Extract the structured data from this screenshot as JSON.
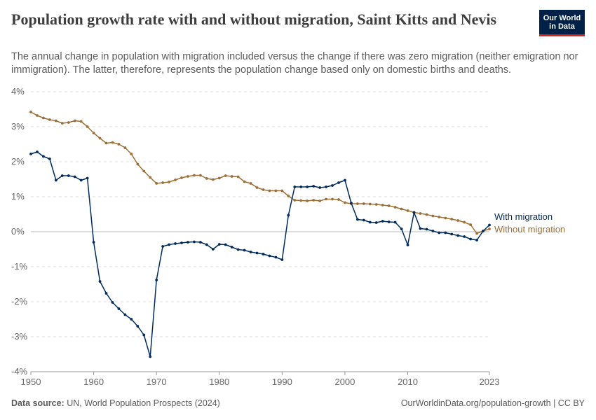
{
  "header": {
    "title": "Population growth rate with and without migration, Saint Kitts and Nevis",
    "subtitle": "The annual change in population with migration included versus the change if there was zero migration (neither emigration nor immigration). The latter, therefore, represents the population change based only on domestic births and deaths.",
    "logo_line1": "Our World",
    "logo_line2": "in Data"
  },
  "footer": {
    "source_label": "Data source:",
    "source_text": "UN, World Population Prospects (2024)",
    "url_text": "OurWorldinData.org/population-growth | CC BY"
  },
  "colors": {
    "with_migration": "#002b5c",
    "without_migration": "#9e6f35",
    "grid": "#dddddd",
    "zero_line": "#bbbbbb"
  },
  "chart_data": {
    "type": "line",
    "title": "Population growth rate with and without migration, Saint Kitts and Nevis",
    "xlabel": "",
    "ylabel": "",
    "xlim": [
      1950,
      2023
    ],
    "ylim": [
      -4,
      4
    ],
    "grid": true,
    "x_ticks": [
      1950,
      1960,
      1970,
      1980,
      1990,
      2000,
      2010,
      2023
    ],
    "x_tick_labels": [
      "1950",
      "1960",
      "1970",
      "1980",
      "1990",
      "2000",
      "2010",
      "2023"
    ],
    "y_ticks": [
      -4,
      -3,
      -2,
      -1,
      0,
      1,
      2,
      3,
      4
    ],
    "y_tick_labels": [
      "-4%",
      "-3%",
      "-2%",
      "-1%",
      "0%",
      "1%",
      "2%",
      "3%",
      "4%"
    ],
    "legend_placement": "inline-right",
    "x": [
      1950,
      1951,
      1952,
      1953,
      1954,
      1955,
      1956,
      1957,
      1958,
      1959,
      1960,
      1961,
      1962,
      1963,
      1964,
      1965,
      1966,
      1967,
      1968,
      1969,
      1970,
      1971,
      1972,
      1973,
      1974,
      1975,
      1976,
      1977,
      1978,
      1979,
      1980,
      1981,
      1982,
      1983,
      1984,
      1985,
      1986,
      1987,
      1988,
      1989,
      1990,
      1991,
      1992,
      1993,
      1994,
      1995,
      1996,
      1997,
      1998,
      1999,
      2000,
      2001,
      2002,
      2003,
      2004,
      2005,
      2006,
      2007,
      2008,
      2009,
      2010,
      2011,
      2012,
      2013,
      2014,
      2015,
      2016,
      2017,
      2018,
      2019,
      2020,
      2021,
      2022,
      2023
    ],
    "series": [
      {
        "name": "With migration",
        "values": [
          2.22,
          2.28,
          2.15,
          2.08,
          1.47,
          1.6,
          1.6,
          1.57,
          1.47,
          1.53,
          -0.3,
          -1.42,
          -1.76,
          -2.02,
          -2.2,
          -2.37,
          -2.5,
          -2.7,
          -2.95,
          -3.57,
          -1.38,
          -0.42,
          -0.37,
          -0.34,
          -0.32,
          -0.3,
          -0.29,
          -0.3,
          -0.37,
          -0.5,
          -0.36,
          -0.37,
          -0.44,
          -0.51,
          -0.53,
          -0.58,
          -0.61,
          -0.64,
          -0.69,
          -0.73,
          -0.8,
          0.47,
          1.28,
          1.28,
          1.28,
          1.3,
          1.26,
          1.28,
          1.32,
          1.4,
          1.47,
          0.82,
          0.35,
          0.33,
          0.27,
          0.26,
          0.3,
          0.28,
          0.27,
          0.08,
          -0.38,
          0.55,
          0.09,
          0.07,
          0.02,
          -0.03,
          -0.03,
          -0.07,
          -0.11,
          -0.14,
          -0.21,
          -0.24,
          0.02,
          0.19
        ]
      },
      {
        "name": "Without migration",
        "values": [
          3.42,
          3.32,
          3.25,
          3.2,
          3.17,
          3.1,
          3.12,
          3.17,
          3.15,
          3.0,
          2.82,
          2.67,
          2.53,
          2.55,
          2.5,
          2.4,
          2.22,
          1.93,
          1.73,
          1.55,
          1.38,
          1.4,
          1.42,
          1.48,
          1.54,
          1.58,
          1.61,
          1.61,
          1.52,
          1.49,
          1.53,
          1.6,
          1.58,
          1.57,
          1.43,
          1.38,
          1.26,
          1.2,
          1.17,
          1.17,
          1.17,
          1.02,
          0.9,
          0.89,
          0.88,
          0.9,
          0.88,
          0.93,
          0.93,
          0.92,
          0.83,
          0.8,
          0.8,
          0.8,
          0.79,
          0.78,
          0.76,
          0.74,
          0.7,
          0.65,
          0.6,
          0.55,
          0.52,
          0.49,
          0.45,
          0.42,
          0.39,
          0.36,
          0.32,
          0.27,
          0.2,
          -0.05,
          0.02,
          0.08
        ]
      }
    ]
  }
}
